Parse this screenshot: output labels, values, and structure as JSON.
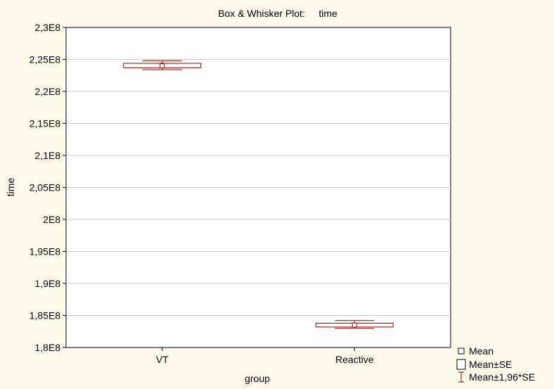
{
  "chart_data": {
    "type": "box",
    "title": "Box & Whisker Plot:     time",
    "xlabel": "group",
    "ylabel": "time",
    "ylim": [
      180000000,
      230000000
    ],
    "yticks": [
      {
        "value": 230000000,
        "label": "2,3E8"
      },
      {
        "value": 225000000,
        "label": "2,25E8"
      },
      {
        "value": 220000000,
        "label": "2,2E8"
      },
      {
        "value": 215000000,
        "label": "2,15E8"
      },
      {
        "value": 210000000,
        "label": "2,1E8"
      },
      {
        "value": 205000000,
        "label": "2,05E8"
      },
      {
        "value": 200000000,
        "label": "2E8"
      },
      {
        "value": 195000000,
        "label": "1,95E8"
      },
      {
        "value": 190000000,
        "label": "1,9E8"
      },
      {
        "value": 185000000,
        "label": "1,85E8"
      },
      {
        "value": 180000000,
        "label": "1,8E8"
      }
    ],
    "grid": true,
    "categories": [
      "VT",
      "Reactive"
    ],
    "groups": [
      {
        "name": "VT",
        "mean": 224000000,
        "se_low": 223700000,
        "se_high": 224400000,
        "ci_low": 223400000,
        "ci_high": 224800000
      },
      {
        "name": "Reactive",
        "mean": 183500000,
        "se_low": 183200000,
        "se_high": 183800000,
        "ci_low": 183000000,
        "ci_high": 184200000
      }
    ],
    "legend": {
      "placement": "bottom-right",
      "items": [
        {
          "label": "Mean",
          "symbol": "small-square"
        },
        {
          "label": "Mean±SE",
          "symbol": "box"
        },
        {
          "label": "Mean±1,96*SE",
          "symbol": "whisker"
        }
      ]
    },
    "colors": {
      "marker": "#8b0000",
      "grid": "#c8c8c8",
      "axis": "#000000",
      "plot_bg": "#ffffff",
      "page_bg": "#fffaec"
    }
  }
}
